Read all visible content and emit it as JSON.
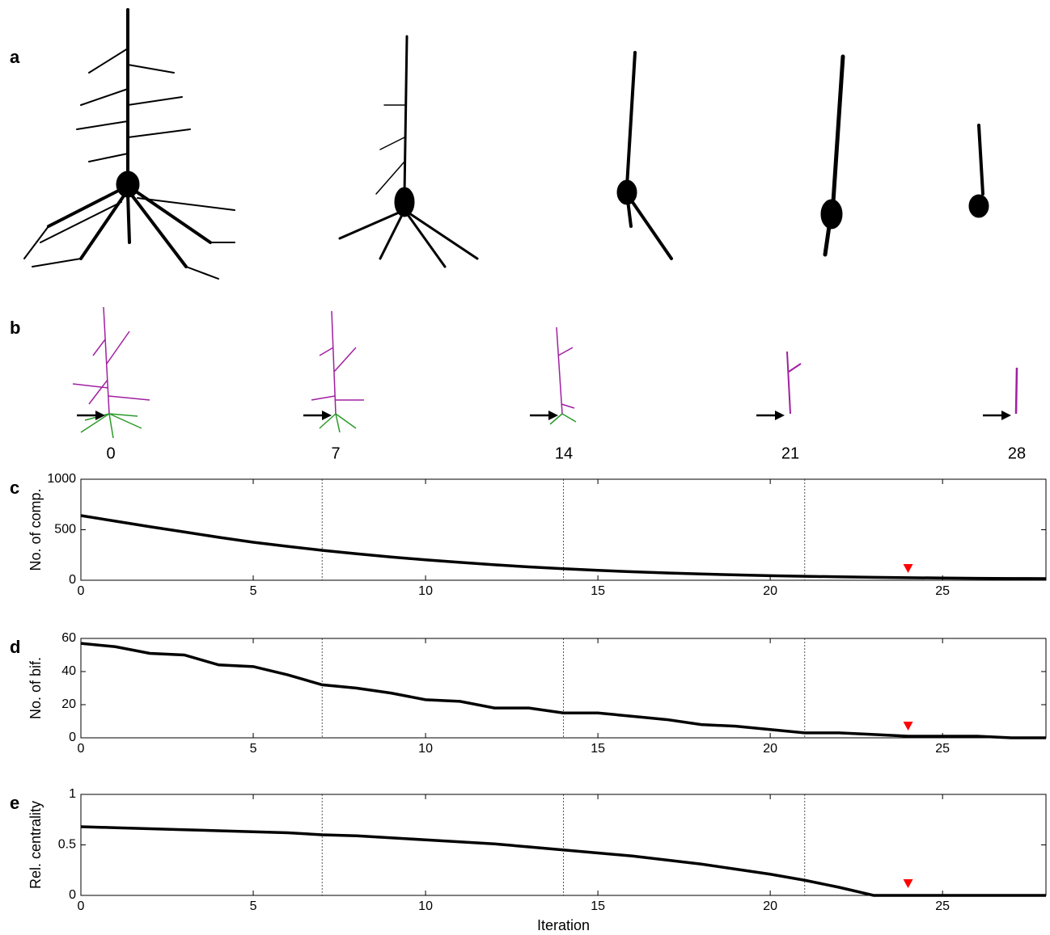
{
  "panel_labels": [
    "a",
    "b"
  ],
  "neuron_iterations": [
    0,
    7,
    14,
    21,
    28
  ],
  "chart_data": [
    {
      "type": "line",
      "label": "c",
      "ylabel": "No. of comp.",
      "color": "#000000",
      "marker_color": "#ff0000",
      "marker_x": 24,
      "vlines": [
        7,
        14,
        21
      ],
      "x": [
        0,
        1,
        2,
        3,
        4,
        5,
        6,
        7,
        8,
        9,
        10,
        11,
        12,
        13,
        14,
        15,
        16,
        17,
        18,
        19,
        20,
        21,
        22,
        23,
        24,
        25,
        26,
        27,
        28
      ],
      "values": [
        640,
        585,
        530,
        478,
        425,
        376,
        335,
        296,
        262,
        230,
        202,
        177,
        153,
        132,
        114,
        98,
        84,
        72,
        62,
        53,
        45,
        39,
        34,
        29,
        25,
        22,
        19,
        17,
        16
      ],
      "xlim": [
        0,
        28
      ],
      "xticks": [
        0,
        5,
        10,
        15,
        20,
        25
      ],
      "ylim": [
        0,
        1000
      ],
      "yticks": [
        0,
        500,
        1000
      ]
    },
    {
      "type": "line",
      "label": "d",
      "ylabel": "No. of bif.",
      "color": "#000000",
      "marker_color": "#ff0000",
      "marker_x": 24,
      "vlines": [
        7,
        14,
        21
      ],
      "x": [
        0,
        1,
        2,
        3,
        4,
        5,
        6,
        7,
        8,
        9,
        10,
        11,
        12,
        13,
        14,
        15,
        16,
        17,
        18,
        19,
        20,
        21,
        22,
        23,
        24,
        25,
        26,
        27,
        28
      ],
      "values": [
        57,
        55,
        51,
        50,
        44,
        43,
        38,
        32,
        30,
        27,
        23,
        22,
        18,
        18,
        15,
        15,
        13,
        11,
        8,
        7,
        5,
        3,
        3,
        2,
        1,
        1,
        1,
        0,
        0
      ],
      "xlim": [
        0,
        28
      ],
      "xticks": [
        0,
        5,
        10,
        15,
        20,
        25
      ],
      "ylim": [
        0,
        60
      ],
      "yticks": [
        0,
        20,
        40,
        60
      ]
    },
    {
      "type": "line",
      "label": "e",
      "ylabel": "Rel. centrality",
      "xlabel": "Iteration",
      "color": "#000000",
      "marker_color": "#ff0000",
      "marker_x": 24,
      "vlines": [
        7,
        14,
        21
      ],
      "x": [
        0,
        1,
        2,
        3,
        4,
        5,
        6,
        7,
        8,
        9,
        10,
        11,
        12,
        13,
        14,
        15,
        16,
        17,
        18,
        19,
        20,
        21,
        22,
        23,
        24,
        25,
        26,
        27,
        28
      ],
      "values": [
        0.68,
        0.67,
        0.66,
        0.65,
        0.64,
        0.63,
        0.62,
        0.6,
        0.59,
        0.57,
        0.55,
        0.53,
        0.51,
        0.48,
        0.45,
        0.42,
        0.39,
        0.35,
        0.31,
        0.26,
        0.21,
        0.15,
        0.08,
        0,
        0,
        0,
        0,
        0,
        0
      ],
      "xlim": [
        0,
        28
      ],
      "xticks": [
        0,
        5,
        10,
        15,
        20,
        25
      ],
      "ylim": [
        0,
        1
      ],
      "yticks": [
        0,
        0.5,
        1
      ]
    }
  ]
}
